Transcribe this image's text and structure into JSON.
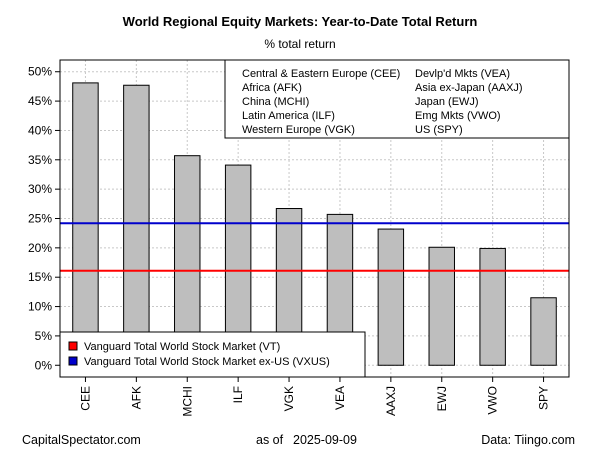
{
  "chart_data": {
    "type": "bar",
    "title": "World Regional Equity Markets: Year-to-Date Total Return",
    "subtitle": "% total return",
    "xlabel": "",
    "ylabel": "",
    "categories": [
      "CEE",
      "AFK",
      "MCHI",
      "ILF",
      "VGK",
      "VEA",
      "AAXJ",
      "EWJ",
      "VWO",
      "SPY"
    ],
    "values": [
      48.1,
      47.7,
      35.7,
      34.1,
      26.7,
      25.7,
      23.2,
      20.1,
      19.9,
      11.5
    ],
    "ylim": [
      -2,
      52
    ],
    "yticks": [
      0,
      5,
      10,
      15,
      20,
      25,
      30,
      35,
      40,
      45,
      50
    ],
    "ytick_labels": [
      "0%",
      "5%",
      "10%",
      "15%",
      "20%",
      "25%",
      "30%",
      "35%",
      "40%",
      "45%",
      "50%"
    ],
    "grid": true,
    "bar_color": "#bebebe",
    "reference_lines": [
      {
        "name": "Vanguard Total World Stock Market (VT)",
        "value": 16.1,
        "color": "#ff0000"
      },
      {
        "name": "Vanguard Total World Stock Market ex-US (VXUS)",
        "value": 24.2,
        "color": "#0000cc"
      }
    ],
    "key_entries": [
      "Central & Eastern Europe (CEE)",
      "Africa (AFK)",
      "China (MCHI)",
      "Latin America (ILF)",
      "Western Europe (VGK)",
      "Devlp'd Mkts (VEA)",
      "Asia ex-Japan (AAXJ)",
      "Japan (EWJ)",
      "Emg Mkts (VWO)",
      "US (SPY)"
    ],
    "key_placement": "top-right",
    "legend_placement": "bottom-left"
  },
  "footer": {
    "source_left": "CapitalSpectator.com",
    "as_of_label": "as of",
    "as_of_date": "2025-09-09",
    "data_source": "Data: Tiingo.com"
  }
}
